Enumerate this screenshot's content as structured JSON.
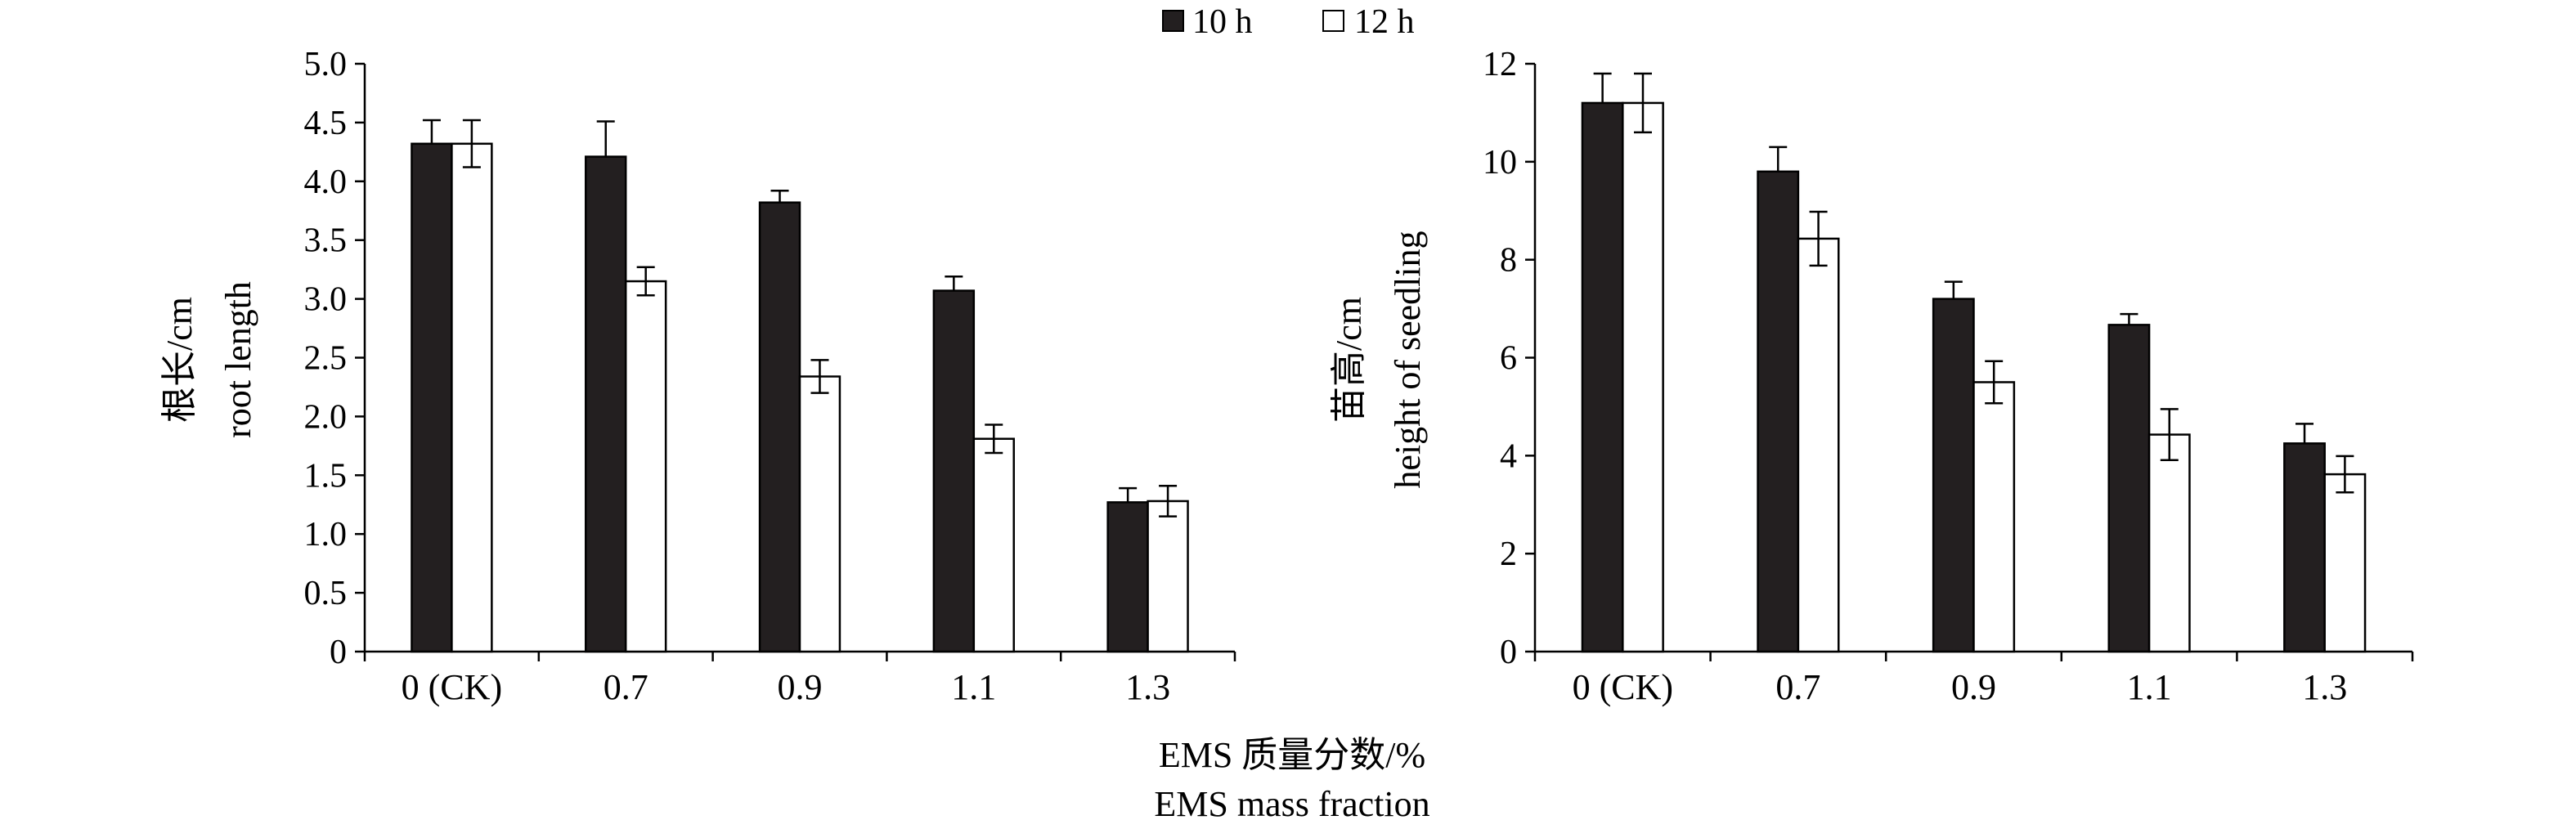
{
  "legend": [
    {
      "label": "10 h",
      "color": "#231f20"
    },
    {
      "label": "12 h",
      "color": "#ffffff"
    }
  ],
  "shared_xlabel": [
    "EMS 质量分数/%",
    "EMS mass fraction"
  ],
  "chart_data": [
    {
      "type": "bar",
      "categories": [
        "0 (CK)",
        "0.7",
        "0.9",
        "1.1",
        "1.3"
      ],
      "ylabel": [
        "根长/cm",
        "root length"
      ],
      "ylim": [
        0,
        5.0
      ],
      "yticks": [
        "0",
        "0.5",
        "1.0",
        "1.5",
        "2.0",
        "2.5",
        "3.0",
        "3.5",
        "4.0",
        "4.5",
        "5.0"
      ],
      "grid": false,
      "legend_position": "top-center",
      "series": [
        {
          "name": "10 h",
          "values": [
            4.32,
            4.21,
            3.82,
            3.07,
            1.27
          ],
          "errors": [
            0.2,
            0.3,
            0.1,
            0.12,
            0.12
          ]
        },
        {
          "name": "12 h",
          "values": [
            4.32,
            3.15,
            2.34,
            1.81,
            1.28
          ],
          "errors": [
            0.2,
            0.12,
            0.14,
            0.12,
            0.13
          ]
        }
      ]
    },
    {
      "type": "bar",
      "categories": [
        "0 (CK)",
        "0.7",
        "0.9",
        "1.1",
        "1.3"
      ],
      "ylabel": [
        "苗高/cm",
        "height of seedling"
      ],
      "ylim": [
        0,
        12
      ],
      "yticks": [
        "0",
        "2",
        "4",
        "6",
        "8",
        "10",
        "12"
      ],
      "grid": false,
      "legend_position": "top-center",
      "series": [
        {
          "name": "10 h",
          "values": [
            11.2,
            9.8,
            7.2,
            6.67,
            4.25
          ],
          "errors": [
            0.6,
            0.5,
            0.35,
            0.22,
            0.4
          ]
        },
        {
          "name": "12 h",
          "values": [
            11.2,
            8.43,
            5.5,
            4.43,
            3.62
          ],
          "errors": [
            0.6,
            0.55,
            0.43,
            0.52,
            0.37
          ]
        }
      ]
    }
  ]
}
